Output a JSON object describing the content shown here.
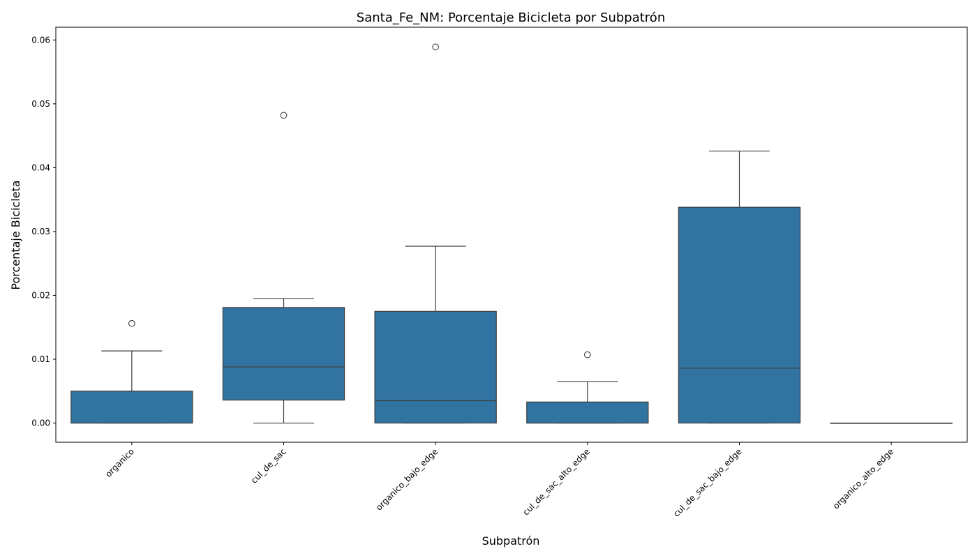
{
  "chart_data": {
    "type": "box",
    "title": "Santa_Fe_NM: Porcentaje Bicicleta por Subpatrón",
    "xlabel": "Subpatrón",
    "ylabel": "Porcentaje Bicicleta",
    "ylim": [
      -0.003,
      0.062
    ],
    "yticks": [
      0.0,
      0.01,
      0.02,
      0.03,
      0.04,
      0.05,
      0.06
    ],
    "ytick_labels": [
      "0.00",
      "0.01",
      "0.02",
      "0.03",
      "0.04",
      "0.05",
      "0.06"
    ],
    "grid": false,
    "box_color": "#3274a1",
    "line_color": "#3d3d3d",
    "categories": [
      "organico",
      "cul_de_sac",
      "organico_bajo_edge",
      "cul_de_sac_alto_edge",
      "cul_de_sac_bajo_edge",
      "organico_alto_edge"
    ],
    "boxes": [
      {
        "whisker_low": 0.0,
        "q1": 0.0,
        "median": 0.0,
        "q3": 0.005,
        "whisker_high": 0.0113,
        "outliers": [
          0.0156
        ]
      },
      {
        "whisker_low": 0.0,
        "q1": 0.0036,
        "median": 0.0088,
        "q3": 0.0181,
        "whisker_high": 0.0195,
        "outliers": [
          0.0482
        ]
      },
      {
        "whisker_low": 0.0,
        "q1": 0.0,
        "median": 0.0035,
        "q3": 0.0175,
        "whisker_high": 0.0277,
        "outliers": [
          0.0589
        ]
      },
      {
        "whisker_low": 0.0,
        "q1": 0.0,
        "median": 0.0,
        "q3": 0.0033,
        "whisker_high": 0.0065,
        "outliers": [
          0.0107
        ]
      },
      {
        "whisker_low": 0.0,
        "q1": 0.0,
        "median": 0.0086,
        "q3": 0.0338,
        "whisker_high": 0.0426,
        "outliers": []
      },
      {
        "whisker_low": 0.0,
        "q1": 0.0,
        "median": 0.0,
        "q3": 0.0,
        "whisker_high": 0.0,
        "outliers": []
      }
    ]
  }
}
